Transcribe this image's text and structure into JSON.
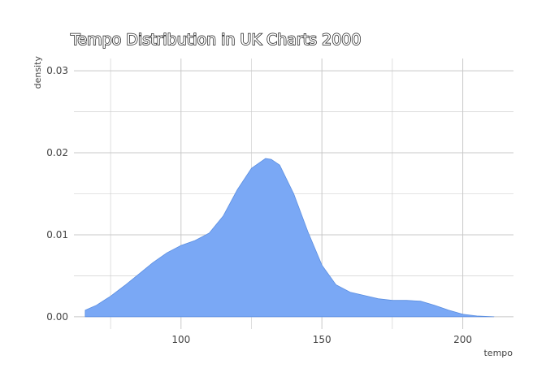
{
  "chart_data": {
    "type": "area",
    "title": "Tempo Distribution in UK Charts 2000",
    "xlabel": "tempo",
    "ylabel": "density",
    "xlim": [
      62,
      218
    ],
    "ylim": [
      -0.0015,
      0.0315
    ],
    "x_ticks": [
      100,
      150,
      200
    ],
    "x_tick_labels": [
      "100",
      "150",
      "200"
    ],
    "x_minor_ticks": [
      75,
      125,
      175
    ],
    "y_ticks": [
      0.0,
      0.01,
      0.02,
      0.03
    ],
    "y_tick_labels": [
      "0.00",
      "0.01",
      "0.02",
      "0.03"
    ],
    "y_minor_ticks": [
      0.005,
      0.015,
      0.025
    ],
    "grid": true,
    "fill_color": "#7aa8f5",
    "line_color": "#5b8ee0",
    "grid_color": "#c8c8c8",
    "x": [
      66,
      70,
      75,
      80,
      85,
      90,
      95,
      100,
      105,
      110,
      115,
      120,
      125,
      130,
      132,
      135,
      140,
      145,
      150,
      155,
      160,
      165,
      170,
      175,
      180,
      185,
      190,
      195,
      200,
      205,
      211
    ],
    "y": [
      0.0008,
      0.0014,
      0.0025,
      0.0038,
      0.0052,
      0.0066,
      0.0078,
      0.0087,
      0.0093,
      0.0102,
      0.0123,
      0.0155,
      0.0181,
      0.0193,
      0.0192,
      0.0185,
      0.015,
      0.0104,
      0.0063,
      0.0039,
      0.003,
      0.0026,
      0.0022,
      0.002,
      0.002,
      0.0019,
      0.0014,
      0.0008,
      0.0003,
      0.0001,
      0.0
    ]
  }
}
